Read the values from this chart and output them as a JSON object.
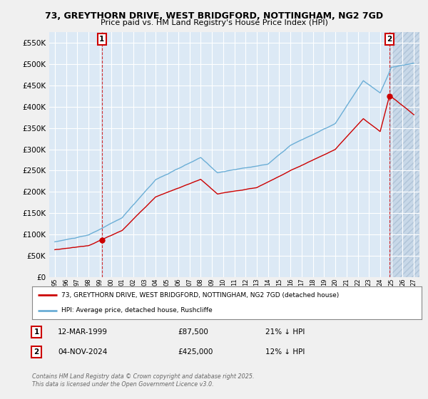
{
  "title1": "73, GREYTHORN DRIVE, WEST BRIDGFORD, NOTTINGHAM, NG2 7GD",
  "title2": "Price paid vs. HM Land Registry's House Price Index (HPI)",
  "background_color": "#f0f0f0",
  "plot_bg_color": "#dce9f5",
  "plot_bg_hatch": "#c8d8e8",
  "grid_color": "#ffffff",
  "hpi_color": "#6baed6",
  "price_color": "#cc0000",
  "ylim": [
    0,
    575000
  ],
  "yticks": [
    0,
    50000,
    100000,
    150000,
    200000,
    250000,
    300000,
    350000,
    400000,
    450000,
    500000,
    550000
  ],
  "xlim_start": 1994.5,
  "xlim_end": 2027.5,
  "purchase1_date": 1999.19,
  "purchase1_price": 87500,
  "purchase1_label": "1",
  "purchase2_date": 2024.84,
  "purchase2_price": 425000,
  "purchase2_label": "2",
  "legend_red": "73, GREYTHORN DRIVE, WEST BRIDGFORD, NOTTINGHAM, NG2 7GD (detached house)",
  "legend_blue": "HPI: Average price, detached house, Rushcliffe",
  "annotation1_date": "12-MAR-1999",
  "annotation1_price": "£87,500",
  "annotation1_hpi": "21% ↓ HPI",
  "annotation2_date": "04-NOV-2024",
  "annotation2_price": "£425,000",
  "annotation2_hpi": "12% ↓ HPI",
  "footer": "Contains HM Land Registry data © Crown copyright and database right 2025.\nThis data is licensed under the Open Government Licence v3.0."
}
